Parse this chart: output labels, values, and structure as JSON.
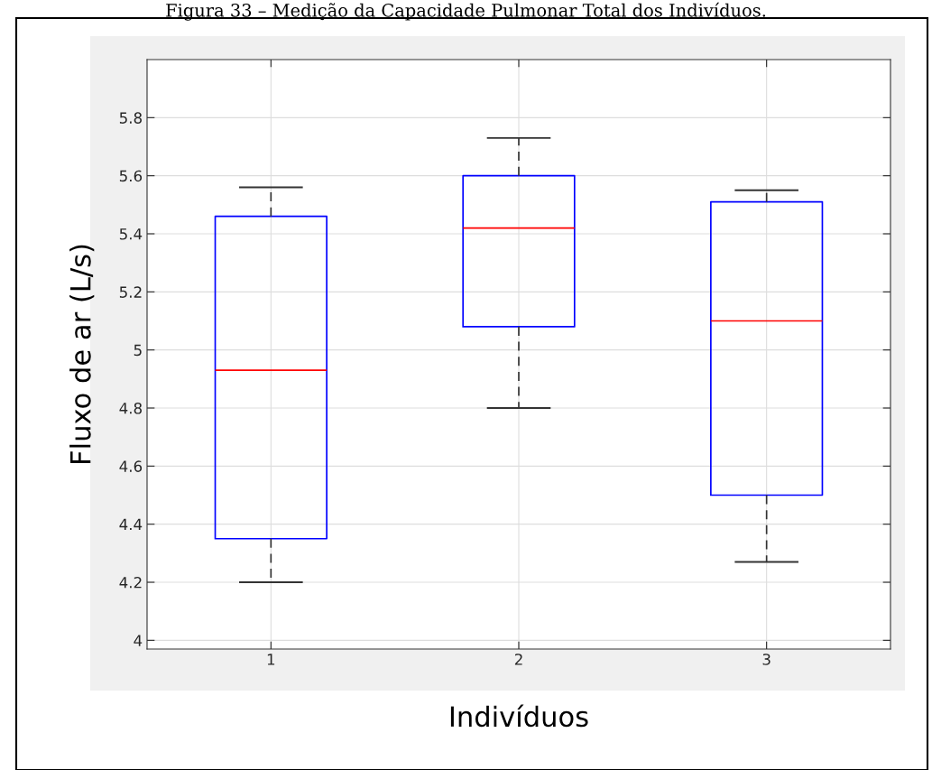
{
  "chart_data": {
    "type": "box",
    "title": "Figura 33 – Medição da Capacidade Pulmonar Total dos Indivíduos.",
    "xlabel": "Indivíduos",
    "ylabel": "Fluxo de ar (L/s)",
    "categories": [
      "1",
      "2",
      "3"
    ],
    "boxes": [
      {
        "low": 4.2,
        "q1": 4.35,
        "median": 4.93,
        "q3": 5.46,
        "high": 5.56
      },
      {
        "low": 4.8,
        "q1": 5.08,
        "median": 5.42,
        "q3": 5.6,
        "high": 5.73
      },
      {
        "low": 4.27,
        "q1": 4.5,
        "median": 5.1,
        "q3": 5.51,
        "high": 5.55
      }
    ],
    "color": "#0000ff",
    "ylim": [
      3.97,
      6.0
    ],
    "yticks": [
      4,
      4.2,
      4.4,
      4.6,
      4.8,
      {
        "value": 5,
        "label": "5"
      },
      5.2,
      5.4,
      5.6,
      5.8
    ],
    "grid": true
  }
}
